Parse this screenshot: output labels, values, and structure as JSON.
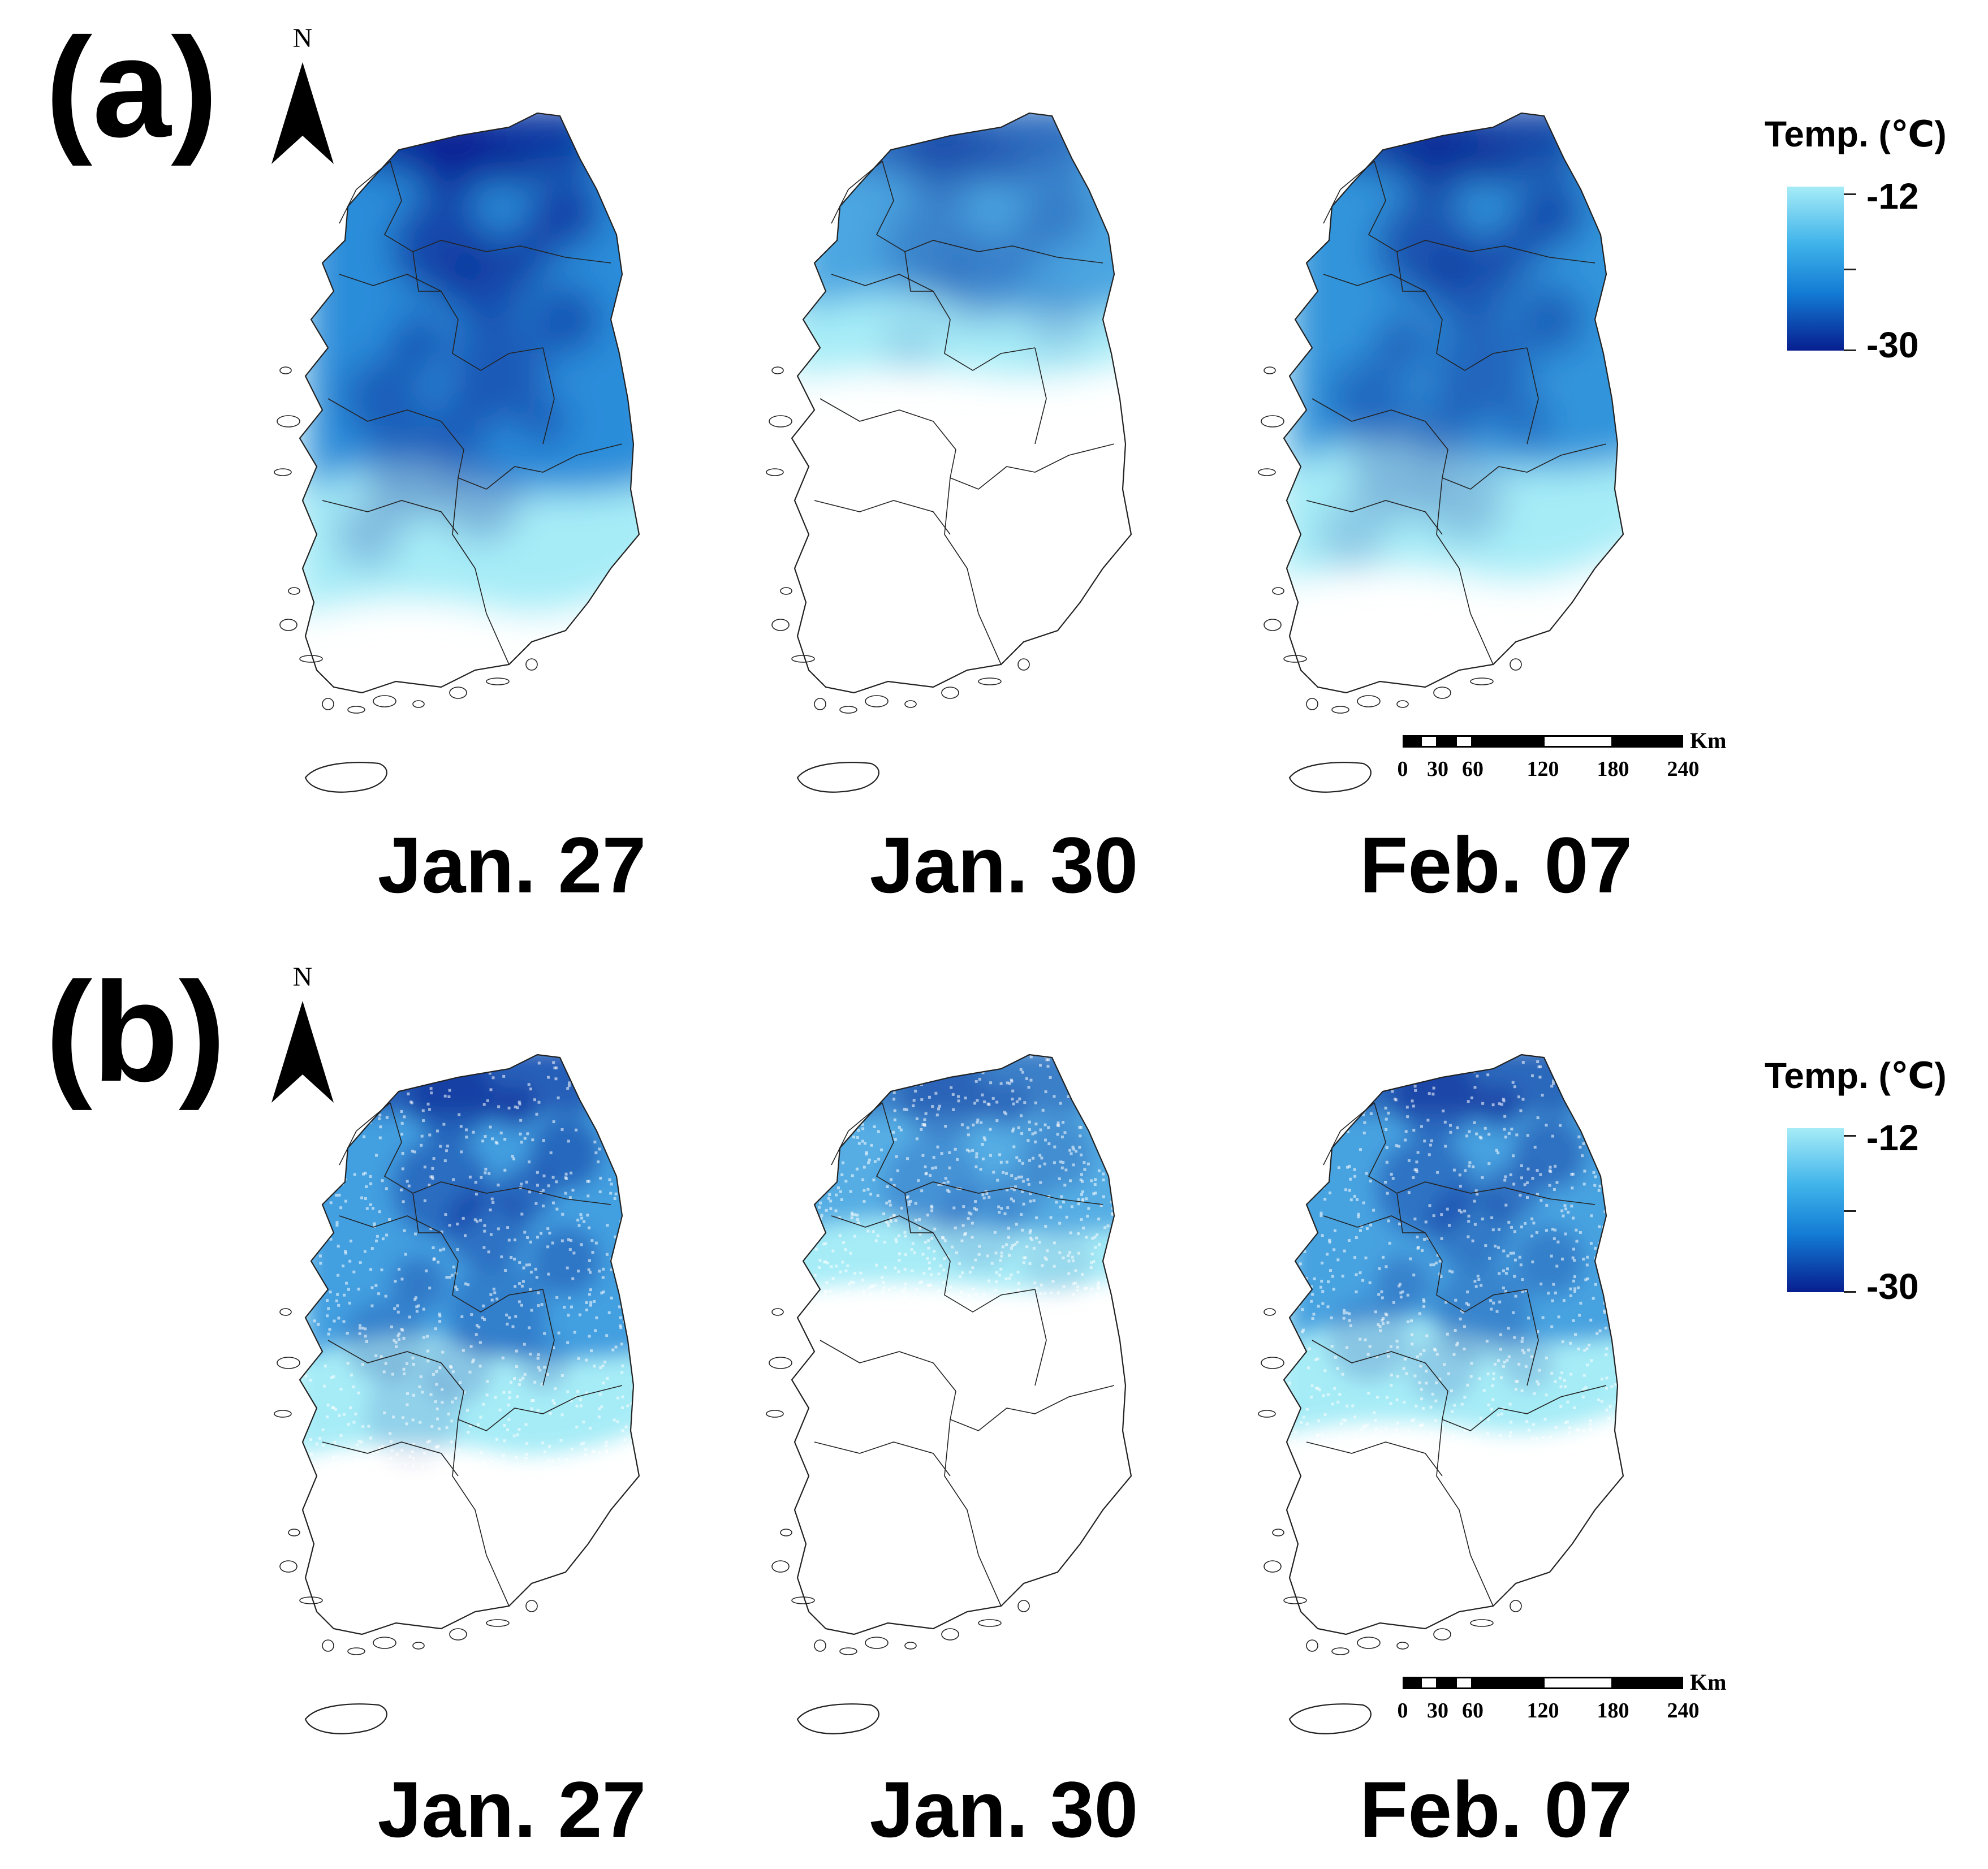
{
  "panels": [
    {
      "label": "(a)",
      "maps": [
        {
          "date": "Jan. 27",
          "coverage": 0.88,
          "intensity": 0.82
        },
        {
          "date": "Jan. 30",
          "coverage": 0.45,
          "intensity": 0.45
        },
        {
          "date": "Feb. 07",
          "coverage": 0.82,
          "intensity": 0.72
        }
      ],
      "legend": {
        "title": "Temp. (℃)",
        "max_label": "-12",
        "min_label": "-30"
      }
    },
    {
      "label": "(b)",
      "maps": [
        {
          "date": "Jan. 27",
          "coverage": 0.7,
          "intensity": 0.55
        },
        {
          "date": "Jan. 30",
          "coverage": 0.4,
          "intensity": 0.35
        },
        {
          "date": "Feb. 07",
          "coverage": 0.66,
          "intensity": 0.5
        }
      ],
      "legend": {
        "title": "Temp. (℃)",
        "max_label": "-12",
        "min_label": "-30"
      }
    }
  ],
  "north_arrow": {
    "letter": "N"
  },
  "scale_bar": {
    "unit": "Km",
    "ticks": [
      "0",
      "30",
      "60",
      "120",
      "180",
      "240"
    ]
  },
  "colors": {
    "cold": "#071e8f",
    "mid": "#137bd4",
    "warm": "#a6ecf7",
    "outline": "#222222"
  }
}
